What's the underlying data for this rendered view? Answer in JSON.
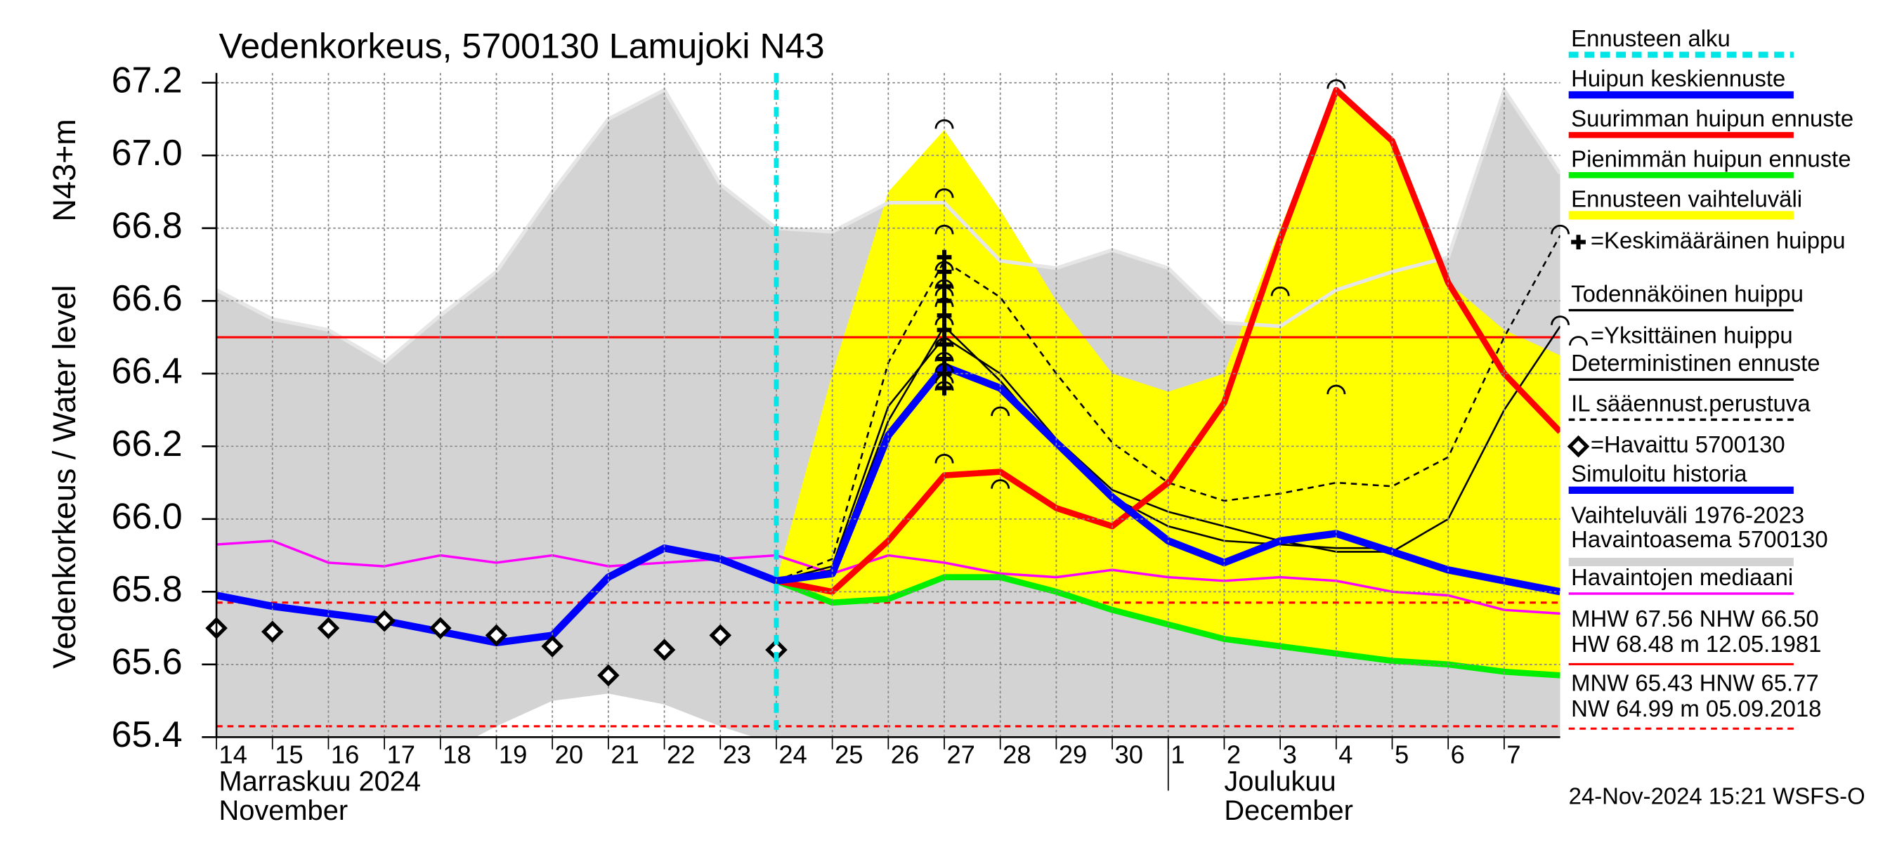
{
  "chart_data": {
    "type": "line",
    "title": "Vedenkorkeus, 5700130 Lamujoki N43",
    "ylabel": "Vedenkorkeus / Water level",
    "ylabel_right": "N43+m",
    "ylim": [
      65.4,
      67.2
    ],
    "yticks": [
      65.4,
      65.6,
      65.8,
      {
        "value": 66,
        "label": "66.0"
      },
      66.2,
      66.4,
      66.6,
      66.8,
      {
        "value": 67,
        "label": "67.0"
      },
      67.2
    ],
    "xlim": [
      "2024-11-14",
      "2024-12-08"
    ],
    "xticks": [
      {
        "value": "2024-11-14",
        "label": "14"
      },
      {
        "value": "2024-11-15",
        "label": "15"
      },
      {
        "value": "2024-11-16",
        "label": "16"
      },
      {
        "value": "2024-11-17",
        "label": "17"
      },
      {
        "value": "2024-11-18",
        "label": "18"
      },
      {
        "value": "2024-11-19",
        "label": "19"
      },
      {
        "value": "2024-11-20",
        "label": "20"
      },
      {
        "value": "2024-11-21",
        "label": "21"
      },
      {
        "value": "2024-11-22",
        "label": "22"
      },
      {
        "value": "2024-11-23",
        "label": "23"
      },
      {
        "value": "2024-11-24",
        "label": "24"
      },
      {
        "value": "2024-11-25",
        "label": "25"
      },
      {
        "value": "2024-11-26",
        "label": "26"
      },
      {
        "value": "2024-11-27",
        "label": "27"
      },
      {
        "value": "2024-11-28",
        "label": "28"
      },
      {
        "value": "2024-11-29",
        "label": "29"
      },
      {
        "value": "2024-11-30",
        "label": "30"
      },
      {
        "value": "2024-12-01",
        "label": "1"
      },
      {
        "value": "2024-12-02",
        "label": "2"
      },
      {
        "value": "2024-12-03",
        "label": "3"
      },
      {
        "value": "2024-12-04",
        "label": "4"
      },
      {
        "value": "2024-12-05",
        "label": "5"
      },
      {
        "value": "2024-12-06",
        "label": "6"
      },
      {
        "value": "2024-12-07",
        "label": "7"
      }
    ],
    "months": [
      {
        "start": "2024-11-14",
        "label": "Marraskuu 2024",
        "label_en": "November"
      },
      {
        "start": "2024-12-01",
        "label": "Joulukuu",
        "label_en": "December"
      }
    ],
    "grid": true,
    "series": [
      {
        "name": "Ennusteen alku",
        "kind": "vline",
        "color": "#00e5e5",
        "dash": true,
        "width": 4,
        "x": [
          "2024-11-24"
        ]
      },
      {
        "name": "Huipun keskiennuste",
        "kind": "line",
        "color": "#0000ff",
        "width": 6,
        "x": [
          "2024-11-24",
          "2024-11-25",
          "2024-11-26",
          "2024-11-27",
          "2024-11-28",
          "2024-11-29",
          "2024-11-30",
          "2024-12-01",
          "2024-12-02",
          "2024-12-03",
          "2024-12-04",
          "2024-12-05",
          "2024-12-06",
          "2024-12-07",
          "2024-12-08"
        ],
        "values": [
          65.83,
          65.85,
          66.23,
          66.42,
          66.36,
          66.21,
          66.06,
          65.94,
          65.88,
          65.94,
          65.96,
          65.91,
          65.86,
          65.83,
          65.8
        ]
      },
      {
        "name": "Suurimman huipun ennuste",
        "kind": "line",
        "color": "#ff0000",
        "width": 5,
        "x": [
          "2024-11-24",
          "2024-11-25",
          "2024-11-26",
          "2024-11-27",
          "2024-11-28",
          "2024-11-29",
          "2024-11-30",
          "2024-12-01",
          "2024-12-02",
          "2024-12-03",
          "2024-12-04",
          "2024-12-05",
          "2024-12-06",
          "2024-12-07",
          "2024-12-08"
        ],
        "values": [
          65.83,
          65.8,
          65.94,
          66.12,
          66.13,
          66.03,
          65.98,
          66.1,
          66.32,
          66.77,
          67.18,
          67.04,
          66.65,
          66.4,
          66.24
        ]
      },
      {
        "name": "Pienimmän huipun ennuste",
        "kind": "line",
        "color": "#00ee00",
        "width": 5,
        "x": [
          "2024-11-24",
          "2024-11-25",
          "2024-11-26",
          "2024-11-27",
          "2024-11-28",
          "2024-11-29",
          "2024-11-30",
          "2024-12-01",
          "2024-12-02",
          "2024-12-03",
          "2024-12-04",
          "2024-12-05",
          "2024-12-06",
          "2024-12-07",
          "2024-12-08"
        ],
        "values": [
          65.83,
          65.77,
          65.78,
          65.84,
          65.84,
          65.8,
          65.75,
          65.71,
          65.67,
          65.65,
          65.63,
          65.61,
          65.6,
          65.58,
          65.57
        ]
      },
      {
        "name": "Ennusteen vaihteluväli",
        "kind": "band",
        "color": "#ffff00",
        "x": [
          "2024-11-24",
          "2024-11-25",
          "2024-11-26",
          "2024-11-27",
          "2024-11-28",
          "2024-11-29",
          "2024-11-30",
          "2024-12-01",
          "2024-12-02",
          "2024-12-03",
          "2024-12-04",
          "2024-12-05",
          "2024-12-06",
          "2024-12-07",
          "2024-12-08"
        ],
        "values": [
          65.83,
          66.4,
          66.9,
          67.07,
          66.85,
          66.6,
          66.4,
          66.35,
          66.4,
          66.8,
          67.18,
          67.04,
          66.65,
          66.52,
          66.45
        ],
        "lower": [
          65.83,
          65.77,
          65.78,
          65.84,
          65.84,
          65.8,
          65.75,
          65.71,
          65.67,
          65.65,
          65.63,
          65.61,
          65.6,
          65.58,
          65.57
        ]
      },
      {
        "name": "=Keskimääräinen huippu",
        "kind": "scatter",
        "marker": "cross",
        "color": "#000000",
        "x": [
          "2024-11-27",
          "2024-11-27",
          "2024-11-27",
          "2024-11-27",
          "2024-11-27",
          "2024-11-27",
          "2024-11-27",
          "2024-11-27",
          "2024-11-27",
          "2024-11-27"
        ],
        "values": [
          66.72,
          66.68,
          66.64,
          66.6,
          66.56,
          66.52,
          66.48,
          66.44,
          66.4,
          66.36
        ]
      },
      {
        "name": "Todennäköinen huippu",
        "kind": "line",
        "color": "#000000",
        "width": 1.5,
        "x": [
          "2024-11-24",
          "2024-11-25",
          "2024-11-26",
          "2024-11-27",
          "2024-11-28",
          "2024-11-29",
          "2024-11-30",
          "2024-12-01",
          "2024-12-02",
          "2024-12-03",
          "2024-12-04",
          "2024-12-05"
        ],
        "values": [
          65.83,
          65.86,
          66.27,
          66.53,
          66.38,
          66.2,
          66.06,
          65.98,
          65.94,
          65.93,
          65.92,
          65.92
        ]
      },
      {
        "name": "=Yksittäinen huippu",
        "kind": "scatter",
        "marker": "arc",
        "color": "#000000",
        "x": [
          "2024-11-27",
          "2024-11-27",
          "2024-11-27",
          "2024-11-27",
          "2024-11-27",
          "2024-11-27",
          "2024-11-27",
          "2024-11-27",
          "2024-11-27",
          "2024-11-27",
          "2024-11-27",
          "2024-11-27",
          "2024-11-27",
          "2024-11-27",
          "2024-11-28",
          "2024-11-28",
          "2024-12-03",
          "2024-12-04",
          "2024-12-04",
          "2024-12-08",
          "2024-12-08"
        ],
        "values": [
          67.07,
          66.88,
          66.78,
          66.68,
          66.63,
          66.61,
          66.58,
          66.53,
          66.47,
          66.43,
          66.4,
          66.37,
          66.35,
          66.15,
          66.28,
          66.08,
          66.61,
          67.18,
          66.34,
          66.78,
          66.53
        ]
      },
      {
        "name": "Deterministinen ennuste",
        "kind": "line",
        "color": "#000000",
        "width": 1.5,
        "x": [
          "2024-11-24",
          "2024-11-25",
          "2024-11-26",
          "2024-11-27",
          "2024-11-28",
          "2024-11-29",
          "2024-11-30",
          "2024-12-01",
          "2024-12-02",
          "2024-12-03",
          "2024-12-04",
          "2024-12-05",
          "2024-12-06",
          "2024-12-07",
          "2024-12-08"
        ],
        "values": [
          65.83,
          65.87,
          66.31,
          66.5,
          66.4,
          66.22,
          66.08,
          66.02,
          65.98,
          65.94,
          65.91,
          65.91,
          66.0,
          66.3,
          66.53
        ]
      },
      {
        "name": "IL sääennust.perustuva",
        "kind": "line",
        "color": "#000000",
        "width": 1.5,
        "dash": true,
        "x": [
          "2024-11-24",
          "2024-11-25",
          "2024-11-26",
          "2024-11-27",
          "2024-11-28",
          "2024-11-29",
          "2024-11-30",
          "2024-12-01",
          "2024-12-02",
          "2024-12-03",
          "2024-12-04",
          "2024-12-05",
          "2024-12-06",
          "2024-12-07",
          "2024-12-08"
        ],
        "values": [
          65.83,
          65.89,
          66.43,
          66.71,
          66.61,
          66.4,
          66.21,
          66.1,
          66.05,
          66.07,
          66.1,
          66.09,
          66.17,
          66.5,
          66.78
        ]
      },
      {
        "name": "=Havaittu 5700130",
        "kind": "scatter",
        "marker": "diamond",
        "color": "#000000",
        "x": [
          "2024-11-14",
          "2024-11-15",
          "2024-11-16",
          "2024-11-17",
          "2024-11-18",
          "2024-11-19",
          "2024-11-20",
          "2024-11-21",
          "2024-11-22",
          "2024-11-23",
          "2024-11-24"
        ],
        "values": [
          65.7,
          65.69,
          65.7,
          65.72,
          65.7,
          65.68,
          65.65,
          65.57,
          65.64,
          65.68,
          65.64
        ]
      },
      {
        "name": "Simuloitu historia",
        "kind": "line",
        "color": "#0000ff",
        "width": 6,
        "x": [
          "2024-11-14",
          "2024-11-15",
          "2024-11-16",
          "2024-11-17",
          "2024-11-18",
          "2024-11-19",
          "2024-11-20",
          "2024-11-21",
          "2024-11-22",
          "2024-11-23",
          "2024-11-24"
        ],
        "values": [
          65.79,
          65.76,
          65.74,
          65.72,
          65.69,
          65.66,
          65.68,
          65.84,
          65.92,
          65.89,
          65.83
        ]
      },
      {
        "name": "Vaihteluväli 1976-2023",
        "subtitle": " Havaintoasema 5700130",
        "kind": "band",
        "color": "#d3d3d3",
        "edge": "#e6e6e6",
        "x": [
          "2024-11-14",
          "2024-11-15",
          "2024-11-16",
          "2024-11-17",
          "2024-11-18",
          "2024-11-19",
          "2024-11-20",
          "2024-11-21",
          "2024-11-22",
          "2024-11-23",
          "2024-11-24",
          "2024-11-25",
          "2024-11-26",
          "2024-11-27",
          "2024-11-28",
          "2024-11-29",
          "2024-11-30",
          "2024-12-01",
          "2024-12-02",
          "2024-12-03",
          "2024-12-04",
          "2024-12-05",
          "2024-12-06",
          "2024-12-07",
          "2024-12-08"
        ],
        "values": [
          66.63,
          66.55,
          66.52,
          66.43,
          66.56,
          66.68,
          66.9,
          67.1,
          67.18,
          66.92,
          66.8,
          66.79,
          66.87,
          66.87,
          66.71,
          66.69,
          66.74,
          66.69,
          66.54,
          66.53,
          66.63,
          66.68,
          66.72,
          67.18,
          66.95
        ],
        "lower": [
          65.3,
          65.3,
          65.3,
          65.3,
          65.35,
          65.43,
          65.5,
          65.52,
          65.49,
          65.43,
          65.38,
          65.38,
          65.38,
          65.38,
          65.38,
          65.38,
          65.38,
          65.38,
          65.38,
          65.38,
          65.38,
          65.38,
          65.38,
          65.38,
          65.38
        ]
      },
      {
        "name": "Havaintojen mediaani",
        "kind": "line",
        "color": "#ff00ff",
        "width": 2,
        "x": [
          "2024-11-14",
          "2024-11-15",
          "2024-11-16",
          "2024-11-17",
          "2024-11-18",
          "2024-11-19",
          "2024-11-20",
          "2024-11-21",
          "2024-11-22",
          "2024-11-23",
          "2024-11-24",
          "2024-11-25",
          "2024-11-26",
          "2024-11-27",
          "2024-11-28",
          "2024-11-29",
          "2024-11-30",
          "2024-12-01",
          "2024-12-02",
          "2024-12-03",
          "2024-12-04",
          "2024-12-05",
          "2024-12-06",
          "2024-12-07",
          "2024-12-08"
        ],
        "values": [
          65.93,
          65.94,
          65.88,
          65.87,
          65.9,
          65.88,
          65.9,
          65.87,
          65.88,
          65.89,
          65.9,
          65.85,
          65.9,
          65.88,
          65.85,
          65.84,
          65.86,
          65.84,
          65.83,
          65.84,
          65.83,
          65.8,
          65.79,
          65.75,
          65.74
        ]
      }
    ],
    "reference_lines": [
      {
        "value": 66.5,
        "color": "#ff0000",
        "dash": false
      },
      {
        "value": 65.77,
        "color": "#ff0000",
        "dash": true
      },
      {
        "value": 65.43,
        "color": "#ff0000",
        "dash": true
      }
    ],
    "stats": [
      {
        "lines": [
          "MHW  67.56 NHW  66.50",
          "HW  68.48 m 12.05.1981"
        ],
        "color": "#ff0000",
        "dash": false
      },
      {
        "lines": [
          "MNW  65.43 HNW  65.77",
          "NW  64.99 m 05.09.2018"
        ],
        "color": "#ff0000",
        "dash": true
      }
    ],
    "footer": "24-Nov-2024 15:21 WSFS-O"
  }
}
